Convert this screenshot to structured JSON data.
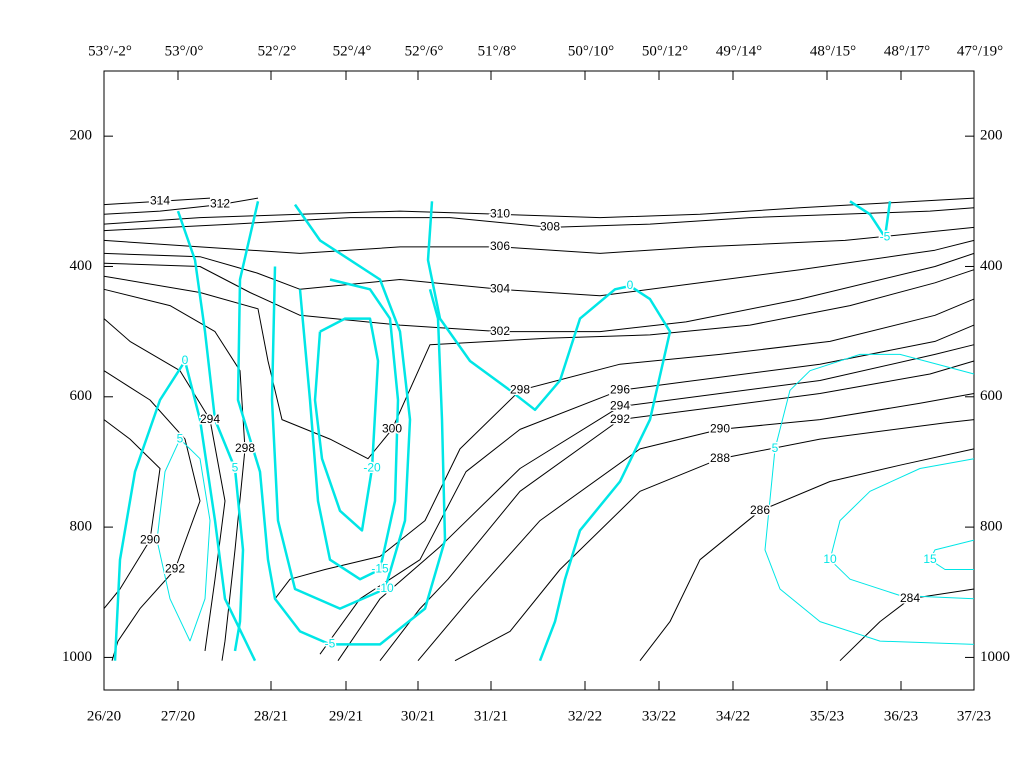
{
  "chart_data": {
    "type": "contour",
    "xlim": [
      0,
      87
    ],
    "ylim": [
      1050,
      100
    ],
    "xticks": [
      {
        "value": 0,
        "label": "26/20"
      },
      {
        "value": 7.4,
        "label": "27/20"
      },
      {
        "value": 16.7,
        "label": "28/21"
      },
      {
        "value": 24.2,
        "label": "29/21"
      },
      {
        "value": 31.4,
        "label": "30/21"
      },
      {
        "value": 38.7,
        "label": "31/21"
      },
      {
        "value": 48.1,
        "label": "32/22"
      },
      {
        "value": 55.5,
        "label": "33/22"
      },
      {
        "value": 62.9,
        "label": "34/22"
      },
      {
        "value": 72.3,
        "label": "35/23"
      },
      {
        "value": 79.7,
        "label": "36/23"
      },
      {
        "value": 87,
        "label": "37/23"
      }
    ],
    "x2ticks": [
      {
        "value": 0,
        "label": "53°/-2°"
      },
      {
        "value": 7.4,
        "label": "53°/0°"
      },
      {
        "value": 16.7,
        "label": "52°/2°"
      },
      {
        "value": 24.2,
        "label": "52°/4°"
      },
      {
        "value": 31.4,
        "label": "52°/6°"
      },
      {
        "value": 38.7,
        "label": "51°/8°"
      },
      {
        "value": 48.1,
        "label": "50°/10°"
      },
      {
        "value": 55.5,
        "label": "50°/12°"
      },
      {
        "value": 62.9,
        "label": "49°/14°"
      },
      {
        "value": 72.3,
        "label": "48°/15°"
      },
      {
        "value": 79.7,
        "label": "48°/17°"
      },
      {
        "value": 87,
        "label": "47°/19°"
      }
    ],
    "yticks": [
      200,
      400,
      600,
      800,
      1000
    ],
    "contours": [
      {
        "level": 314,
        "color": "#000000",
        "linewidth": 1,
        "x": [
          0,
          5.6,
          10.6
        ],
        "y": [
          305,
          300,
          295
        ]
      },
      {
        "level": 312,
        "color": "#000000",
        "linewidth": 1,
        "x": [
          0,
          5.6,
          11.6,
          15.4
        ],
        "y": [
          320,
          315,
          305,
          295
        ]
      },
      {
        "level": 310,
        "color": "#000000",
        "linewidth": 1,
        "x": [
          0,
          9.6,
          19.6,
          29.6,
          39.6,
          49.6,
          59.6,
          69.6,
          87
        ],
        "y": [
          335,
          325,
          320,
          315,
          320,
          325,
          320,
          310,
          295
        ]
      },
      {
        "level": 308,
        "color": "#000000",
        "linewidth": 1,
        "x": [
          0,
          12.9,
          24.6,
          34.6,
          44.6,
          54.6,
          64.6,
          82.6,
          87
        ],
        "y": [
          345,
          335,
          325,
          325,
          340,
          335,
          325,
          315,
          310
        ]
      },
      {
        "level": 306,
        "color": "#000000",
        "linewidth": 1,
        "x": [
          0,
          9.6,
          19.6,
          29.6,
          39.6,
          49.6,
          59.6,
          74.1,
          87
        ],
        "y": [
          360,
          370,
          380,
          370,
          370,
          380,
          370,
          360,
          340
        ]
      },
      {
        "level": 304,
        "color": "#000000",
        "linewidth": 1,
        "x": [
          0,
          9.6,
          15.3,
          19.6,
          29.6,
          39.6,
          49.6,
          59.6,
          69.6,
          83.1,
          87
        ],
        "y": [
          380,
          385,
          410,
          435,
          420,
          435,
          445,
          425,
          405,
          375,
          360
        ]
      },
      {
        "level": 302,
        "color": "#000000",
        "linewidth": 1,
        "x": [
          0,
          9.6,
          14.6,
          19.6,
          29.6,
          39.6,
          49.6,
          58.2,
          69.6,
          83.1,
          87
        ],
        "y": [
          395,
          400,
          440,
          475,
          490,
          500,
          500,
          485,
          450,
          400,
          380
        ]
      },
      {
        "level": 300,
        "color": "#000000",
        "linewidth": 1,
        "x": [
          0,
          9.6,
          15.4,
          16.4,
          17.8,
          22.6,
          26.4,
          28.8,
          32.6,
          44.6,
          54.6,
          64.6,
          74.6,
          83.1,
          87
        ],
        "y": [
          415,
          440,
          465,
          545,
          635,
          665,
          695,
          650,
          520,
          510,
          505,
          490,
          460,
          425,
          405
        ]
      },
      {
        "level": 298,
        "color": "#000000",
        "linewidth": 1,
        "x": [
          0,
          6.6,
          11.1,
          13.6,
          14.1,
          13.1,
          12.1,
          11.8
        ],
        "y": [
          435,
          460,
          500,
          560,
          680,
          835,
          975,
          1005
        ]
      },
      {
        "level": 298,
        "color": "#000000",
        "linewidth": 1,
        "x": [
          17.1,
          18.6,
          22.1,
          27.6,
          32.1,
          35.6,
          41.6,
          51.6,
          61.6,
          72.6,
          83.1,
          87
        ],
        "y": [
          910,
          880,
          865,
          845,
          790,
          680,
          590,
          550,
          535,
          515,
          475,
          450
        ]
      },
      {
        "level": 296,
        "color": "#000000",
        "linewidth": 1,
        "x": [
          21.6,
          25.6,
          31.6,
          36.2,
          41.6,
          51.6,
          61.6,
          71.6,
          83.1,
          87
        ],
        "y": [
          995,
          910,
          850,
          715,
          650,
          590,
          570,
          550,
          515,
          490
        ]
      },
      {
        "level": 294,
        "color": "#000000",
        "linewidth": 1,
        "x": [
          0,
          2.6,
          7.6,
          10.6,
          12.1,
          11.1,
          10.1
        ],
        "y": [
          480,
          515,
          560,
          635,
          760,
          880,
          990
        ]
      },
      {
        "level": 294,
        "color": "#000000",
        "linewidth": 1,
        "x": [
          23.4,
          27.6,
          33.6,
          41.6,
          51.6,
          61.6,
          71.6,
          83.1,
          87
        ],
        "y": [
          1005,
          910,
          830,
          710,
          615,
          595,
          575,
          535,
          520
        ]
      },
      {
        "level": 292,
        "color": "#000000",
        "linewidth": 1,
        "x": [
          0,
          4.6,
          8.1,
          9.6,
          7.1,
          3.6,
          1.4,
          0.8
        ],
        "y": [
          560,
          605,
          665,
          760,
          865,
          925,
          975,
          1005
        ]
      },
      {
        "level": 292,
        "color": "#000000",
        "linewidth": 1,
        "x": [
          27.6,
          31.6,
          34.4,
          41.6,
          51.6,
          61.6,
          71.6,
          82.6,
          87
        ],
        "y": [
          1005,
          925,
          880,
          745,
          635,
          615,
          595,
          565,
          545
        ]
      },
      {
        "level": 290,
        "color": "#000000",
        "linewidth": 1,
        "x": [
          0,
          2.6,
          5.6,
          4.6,
          1.6,
          0
        ],
        "y": [
          635,
          665,
          710,
          820,
          895,
          925
        ]
      },
      {
        "level": 290,
        "color": "#000000",
        "linewidth": 1,
        "x": [
          31.4,
          36.6,
          43.6,
          53.6,
          61.6,
          71.6,
          81.6,
          87
        ],
        "y": [
          1005,
          910,
          790,
          680,
          650,
          635,
          610,
          595
        ]
      },
      {
        "level": 288,
        "color": "#000000",
        "linewidth": 1,
        "x": [
          35.1,
          40.6,
          45.6,
          53.6,
          61.6,
          71.6,
          84.1,
          87
        ],
        "y": [
          1005,
          960,
          865,
          745,
          695,
          665,
          640,
          635
        ]
      },
      {
        "level": 286,
        "color": "#000000",
        "linewidth": 1,
        "x": [
          53.6,
          56.6,
          59.6,
          65.6,
          72.6,
          79.6,
          87
        ],
        "y": [
          1005,
          945,
          850,
          775,
          730,
          705,
          680
        ]
      },
      {
        "level": 284,
        "color": "#000000",
        "linewidth": 1,
        "x": [
          73.6,
          77.6,
          80.6,
          87
        ],
        "y": [
          1005,
          945,
          910,
          895
        ]
      },
      {
        "level": 5,
        "color": "#00e6e6",
        "linewidth": 1,
        "x": [
          8.6,
          6.6,
          5.3,
          6.1,
          7.6,
          9.6,
          10.6,
          10.1,
          8.6
        ],
        "y": [
          975,
          910,
          820,
          715,
          665,
          695,
          790,
          910,
          975
        ]
      },
      {
        "level": 0,
        "color": "#00e6e6",
        "linewidth": 2.5,
        "x": [
          1.1,
          1.6,
          3.1,
          5.6,
          8.1,
          9.6,
          11.1,
          12.1,
          15.1
        ],
        "y": [
          1005,
          850,
          715,
          605,
          545,
          635,
          790,
          910,
          1005
        ]
      },
      {
        "level": 5,
        "color": "#00e6e6",
        "linewidth": 2.5,
        "x": [
          7.4,
          9.1,
          10.1,
          11.1,
          13.1,
          13.9,
          13.6,
          13.1
        ],
        "y": [
          315,
          390,
          500,
          635,
          710,
          835,
          945,
          990
        ]
      },
      {
        "level": -5,
        "color": "#00e6e6",
        "linewidth": 2.5,
        "x": [
          15.4,
          13.6,
          13.4,
          15.6,
          16.4,
          17.1,
          19.6,
          22.6,
          27.6,
          32.1,
          34.1,
          33.8,
          33.4,
          32.6
        ],
        "y": [
          300,
          420,
          605,
          715,
          850,
          910,
          960,
          980,
          980,
          925,
          820,
          635,
          480,
          435
        ]
      },
      {
        "level": -10,
        "color": "#00e6e6",
        "linewidth": 2.5,
        "x": [
          19.1,
          21.6,
          27.6,
          29.6,
          30.6,
          30.1,
          28.1,
          23.6,
          19.1,
          17.4,
          16.8,
          17.1
        ],
        "y": [
          305,
          360,
          420,
          500,
          635,
          790,
          895,
          925,
          895,
          790,
          605,
          400
        ]
      },
      {
        "level": -15,
        "color": "#00e6e6",
        "linewidth": 2.5,
        "x": [
          19.6,
          20.6,
          21.4,
          22.6,
          25.6,
          27.6,
          29.1,
          29.4,
          28.6,
          26.6,
          22.6
        ],
        "y": [
          435,
          605,
          760,
          850,
          880,
          865,
          760,
          605,
          480,
          435,
          420
        ]
      },
      {
        "level": -20,
        "color": "#00e6e6",
        "linewidth": 2.5,
        "x": [
          21.6,
          21.1,
          21.8,
          23.6,
          25.8,
          26.8,
          27.4,
          26.6,
          24.1,
          21.6
        ],
        "y": [
          500,
          605,
          695,
          775,
          805,
          710,
          545,
          480,
          480,
          500
        ]
      },
      {
        "level": 0,
        "color": "#00e6e6",
        "linewidth": 2.5,
        "x": [
          32.8,
          32.4,
          33.6,
          36.6,
          40.6,
          43.1,
          45.6,
          47.6,
          51.1,
          52.6,
          54.6,
          56.6,
          54.6,
          51.6,
          47.6,
          46.1,
          45.1,
          43.6
        ],
        "y": [
          300,
          390,
          480,
          545,
          590,
          620,
          575,
          480,
          435,
          430,
          450,
          500,
          635,
          730,
          805,
          880,
          945,
          1005
        ]
      },
      {
        "level": 5,
        "color": "#00e6e6",
        "linewidth": 1,
        "x": [
          87,
          79.6,
          75.6,
          70.6,
          68.6,
          67.1,
          66.1,
          67.6,
          71.6,
          77.6,
          87
        ],
        "y": [
          565,
          535,
          535,
          560,
          590,
          680,
          835,
          895,
          945,
          975,
          980
        ]
      },
      {
        "level": 10,
        "color": "#00e6e6",
        "linewidth": 1,
        "x": [
          87,
          81.6,
          76.6,
          73.6,
          72.6,
          74.6,
          79.6,
          87
        ],
        "y": [
          695,
          710,
          745,
          790,
          850,
          880,
          905,
          910
        ]
      },
      {
        "level": 15,
        "color": "#00e6e6",
        "linewidth": 1,
        "x": [
          87,
          83.1,
          82.6,
          84.1,
          87
        ],
        "y": [
          820,
          835,
          850,
          865,
          865
        ]
      },
      {
        "level": -5,
        "color": "#00e6e6",
        "linewidth": 2.5,
        "x": [
          74.6,
          76.6,
          78.1,
          78.6
        ],
        "y": [
          300,
          320,
          355,
          300
        ]
      }
    ]
  }
}
